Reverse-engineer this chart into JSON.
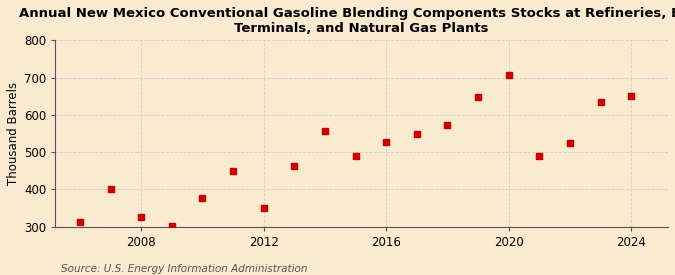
{
  "title": "Annual New Mexico Conventional Gasoline Blending Components Stocks at Refineries, Bulk\nTerminals, and Natural Gas Plants",
  "ylabel": "Thousand Barrels",
  "source": "Source: U.S. Energy Information Administration",
  "background_color": "#faebd0",
  "plot_bg_color": "#faebd0",
  "marker_color": "#cc0000",
  "years": [
    2006,
    2007,
    2008,
    2009,
    2010,
    2011,
    2012,
    2013,
    2014,
    2015,
    2016,
    2017,
    2018,
    2019,
    2020,
    2021,
    2022,
    2023,
    2024
  ],
  "values": [
    312,
    400,
    325,
    302,
    378,
    450,
    350,
    463,
    558,
    490,
    527,
    548,
    572,
    648,
    708,
    490,
    525,
    635,
    650
  ],
  "ylim": [
    300,
    800
  ],
  "yticks": [
    300,
    400,
    500,
    600,
    700,
    800
  ],
  "xticks": [
    2008,
    2012,
    2016,
    2020,
    2024
  ],
  "grid_color": "#cccccc",
  "title_fontsize": 9.5,
  "axis_fontsize": 8.5,
  "source_fontsize": 7.5
}
